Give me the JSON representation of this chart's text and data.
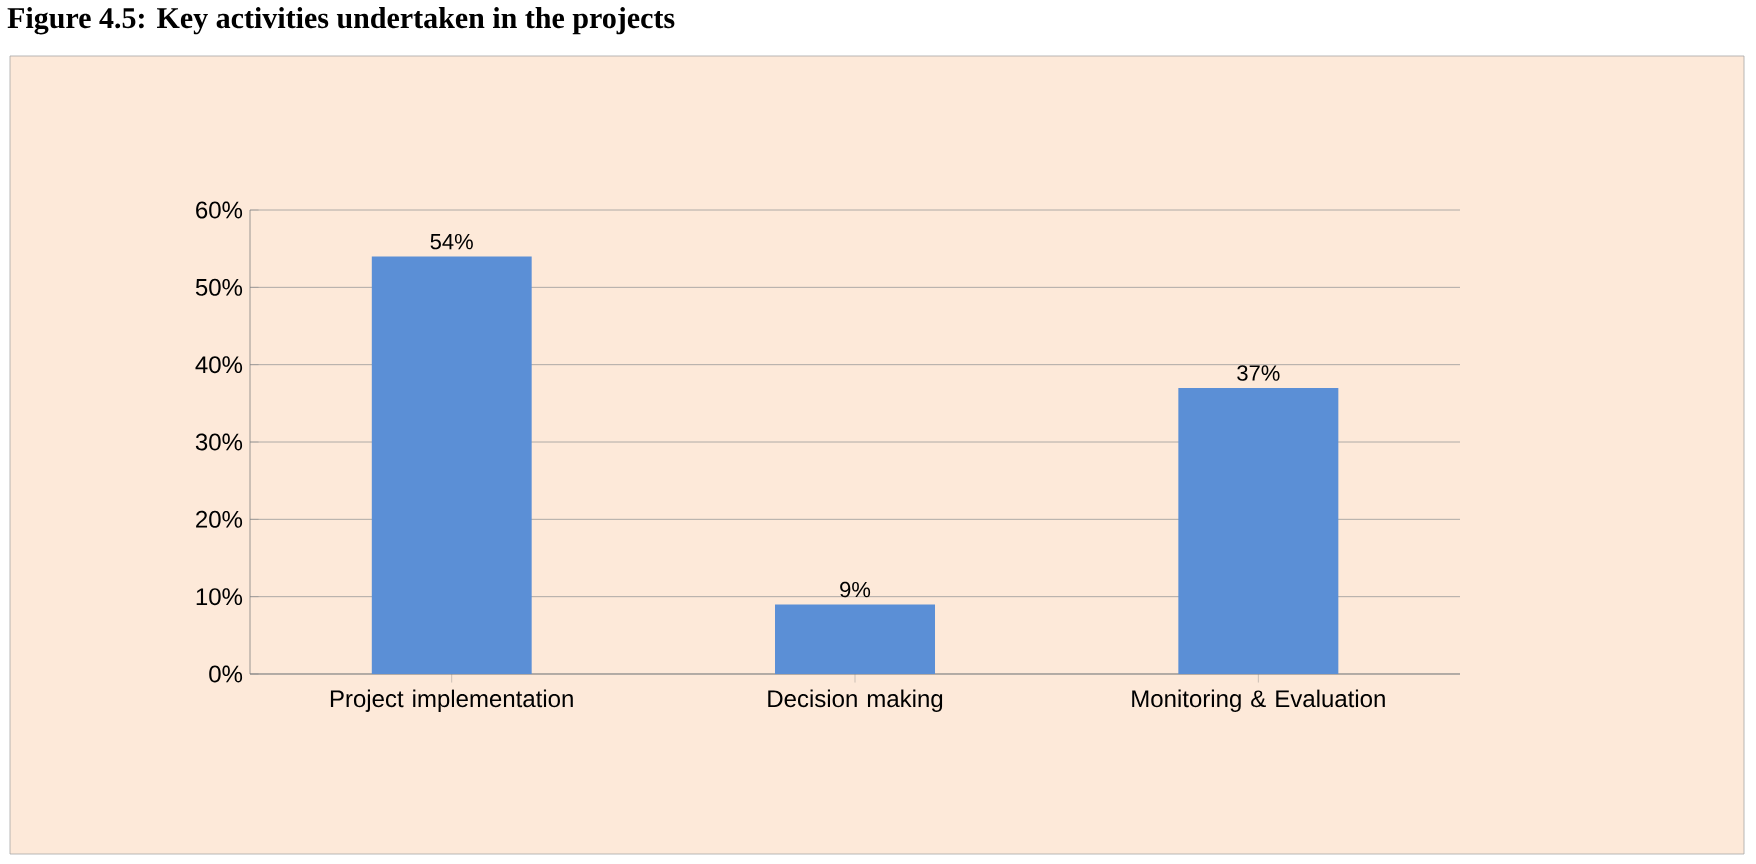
{
  "chart_data": {
    "type": "bar",
    "title": "Figure 4.5: Key activities undertaken in the projects",
    "categories": [
      "Project implementation",
      "Decision making",
      "Monitoring & Evaluation"
    ],
    "values": [
      54,
      9,
      37
    ],
    "value_labels": [
      "54%",
      "9%",
      "37%"
    ],
    "color": "#5b8fd6",
    "ylim": [
      0,
      60
    ],
    "yticks": [
      {
        "value": 0,
        "label": "0%"
      },
      {
        "value": 10,
        "label": "10%"
      },
      {
        "value": 20,
        "label": "20%"
      },
      {
        "value": 30,
        "label": "30%"
      },
      {
        "value": 40,
        "label": "40%"
      },
      {
        "value": 50,
        "label": "50%"
      },
      {
        "value": 60,
        "label": "60%"
      }
    ],
    "grid": "y"
  }
}
